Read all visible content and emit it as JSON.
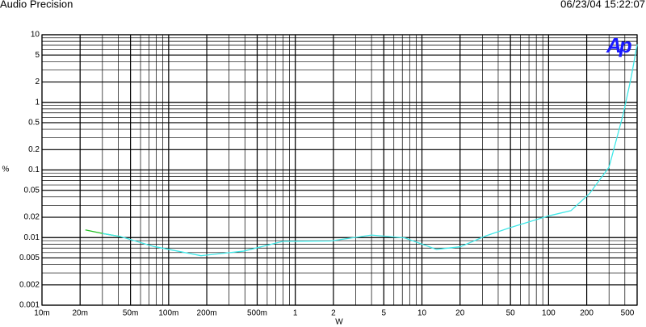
{
  "chart_data": {
    "type": "line",
    "title": "Audio Precision",
    "timestamp": "06/23/04 15:22:07",
    "logo": "Ap",
    "x_label": "W",
    "y_label": "%",
    "xscale": "log",
    "yscale": "log",
    "grid": true,
    "xlim": [
      0.01,
      500
    ],
    "ylim": [
      0.001,
      10
    ],
    "xticks": [
      {
        "value": 0.01,
        "label": "10m"
      },
      {
        "value": 0.02,
        "label": "20m"
      },
      {
        "value": 0.05,
        "label": "50m"
      },
      {
        "value": 0.1,
        "label": "100m"
      },
      {
        "value": 0.2,
        "label": "200m"
      },
      {
        "value": 0.5,
        "label": "500m"
      },
      1,
      2,
      5,
      10,
      20,
      50,
      100,
      200,
      500
    ],
    "yticks": [
      0.001,
      0.002,
      0.005,
      0.01,
      0.02,
      0.05,
      0.1,
      0.2,
      0.5,
      1,
      2,
      5,
      10
    ],
    "series": [
      {
        "color": "#22c022",
        "x": [
          0.022,
          0.03,
          0.042
        ],
        "values": [
          0.013,
          0.0115,
          0.0103
        ]
      },
      {
        "color": "#40e8e8",
        "x": [
          0.03,
          0.042,
          0.076,
          0.18,
          0.39,
          0.8,
          1.9,
          4,
          7.3,
          13,
          20,
          32,
          49,
          100,
          150,
          210,
          300,
          390,
          450,
          500
        ],
        "values": [
          0.0115,
          0.0103,
          0.0074,
          0.0054,
          0.0063,
          0.0088,
          0.0089,
          0.0109,
          0.0099,
          0.0067,
          0.0073,
          0.0106,
          0.0139,
          0.0209,
          0.025,
          0.0445,
          0.11,
          0.69,
          2.4,
          7.2
        ]
      }
    ]
  }
}
